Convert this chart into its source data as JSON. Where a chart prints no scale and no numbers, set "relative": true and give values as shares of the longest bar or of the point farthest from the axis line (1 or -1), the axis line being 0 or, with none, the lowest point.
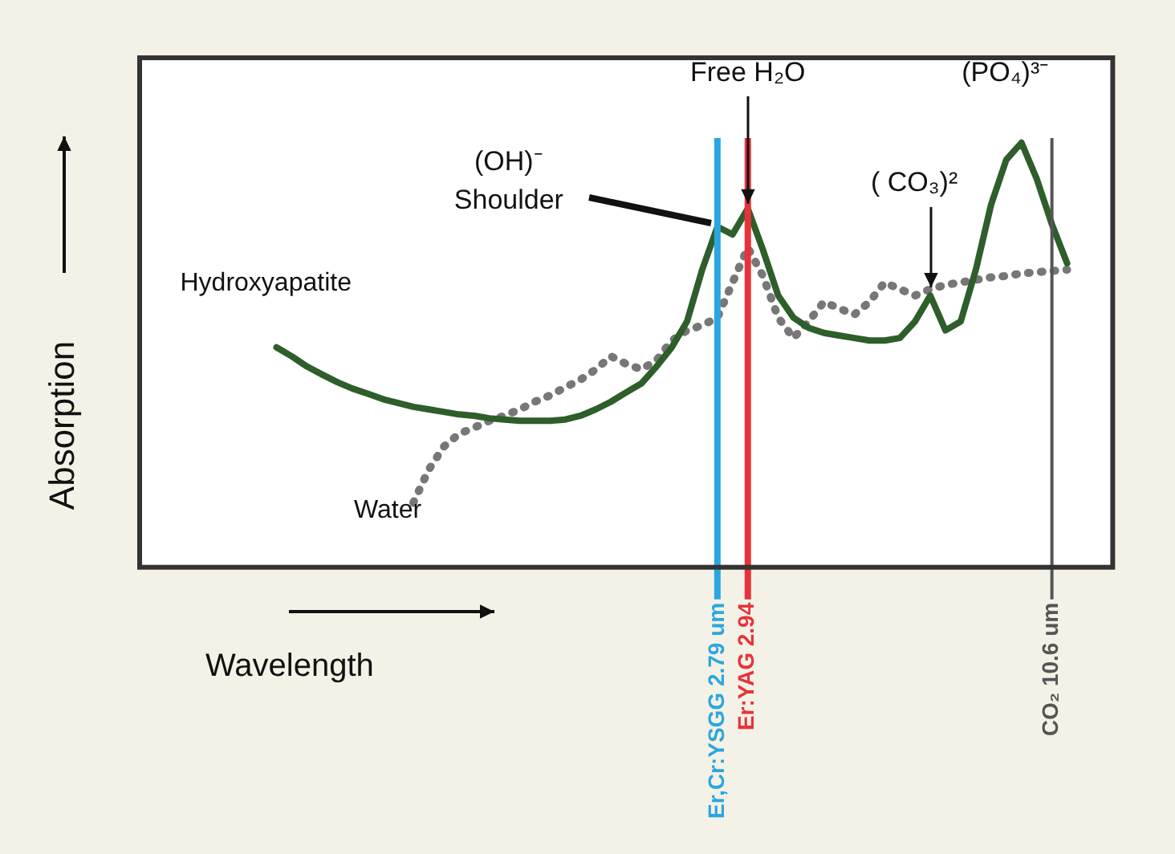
{
  "chart_data": {
    "type": "line",
    "relative": true,
    "xlabel": "Wavelength",
    "ylabel": "Absorption",
    "categories": [
      null,
      null,
      null,
      null,
      null,
      null,
      null,
      null,
      null,
      null,
      null,
      null,
      null,
      null,
      null,
      null,
      null,
      null,
      null,
      null,
      null,
      null,
      null,
      null,
      null,
      null,
      null,
      null,
      null,
      null,
      null,
      null,
      null,
      null,
      null,
      null,
      null,
      null,
      "Er,Cr:YSGG\n2.79 um",
      null,
      "Er:YAG\n2.94",
      null,
      null,
      null,
      null,
      null,
      null,
      null,
      null,
      null,
      null,
      null,
      null,
      null,
      null,
      null,
      null,
      null,
      null,
      null,
      "CO₂\n10.6 um",
      null,
      null,
      null,
      null
    ],
    "series": [
      {
        "name": "Hydroxyapatite",
        "color": "#2e5e2a",
        "line_style": "solid",
        "values": [
          null,
          null,
          null,
          null,
          null,
          null,
          null,
          null,
          null,
          0.518,
          0.497,
          0.473,
          0.454,
          0.436,
          0.421,
          0.409,
          0.396,
          0.387,
          0.378,
          0.372,
          0.366,
          0.36,
          0.357,
          0.351,
          0.348,
          0.345,
          0.345,
          0.345,
          0.348,
          0.357,
          0.372,
          0.39,
          0.412,
          0.433,
          0.473,
          0.518,
          0.579,
          0.701,
          0.802,
          0.784,
          0.845,
          0.747,
          0.64,
          0.588,
          0.564,
          0.552,
          0.546,
          0.54,
          0.534,
          0.534,
          0.54,
          0.579,
          0.64,
          0.558,
          0.579,
          0.701,
          0.854,
          0.96,
          1,
          0.915,
          0.808,
          0.716,
          null,
          null,
          null
        ]
      },
      {
        "name": "Water",
        "color": "#777777",
        "line_style": "dotted",
        "values": [
          null,
          null,
          null,
          null,
          null,
          null,
          null,
          null,
          null,
          null,
          null,
          null,
          null,
          null,
          null,
          null,
          null,
          null,
          0.152,
          0.229,
          0.284,
          0.314,
          0.329,
          0.345,
          0.357,
          0.372,
          0.39,
          0.405,
          0.424,
          0.442,
          0.466,
          0.497,
          0.479,
          0.466,
          0.488,
          0.534,
          0.558,
          0.57,
          0.588,
          0.671,
          0.753,
          0.686,
          0.588,
          0.54,
          0.579,
          0.625,
          0.61,
          0.595,
          0.625,
          0.671,
          0.655,
          0.64,
          0.655,
          0.665,
          0.671,
          0.677,
          0.683,
          0.686,
          0.692,
          0.695,
          0.698,
          0.701,
          null,
          null,
          null
        ]
      }
    ],
    "ref_lines": [
      {
        "axis": "x",
        "value": "Er,Cr:YSGG\n2.79 um",
        "color": "#2aa7e0"
      },
      {
        "axis": "x",
        "value": "Er:YAG\n2.94",
        "color": "#e8323a"
      },
      {
        "axis": "x",
        "value": "CO₂\n10.6 um",
        "color": "#555555"
      }
    ],
    "annotations": [
      "Free H₂O",
      "(OH)⁻ Shoulder",
      "( CO₃)²",
      "(PO₄)³⁻"
    ],
    "marker": "none",
    "grid": false,
    "legend": false
  }
}
